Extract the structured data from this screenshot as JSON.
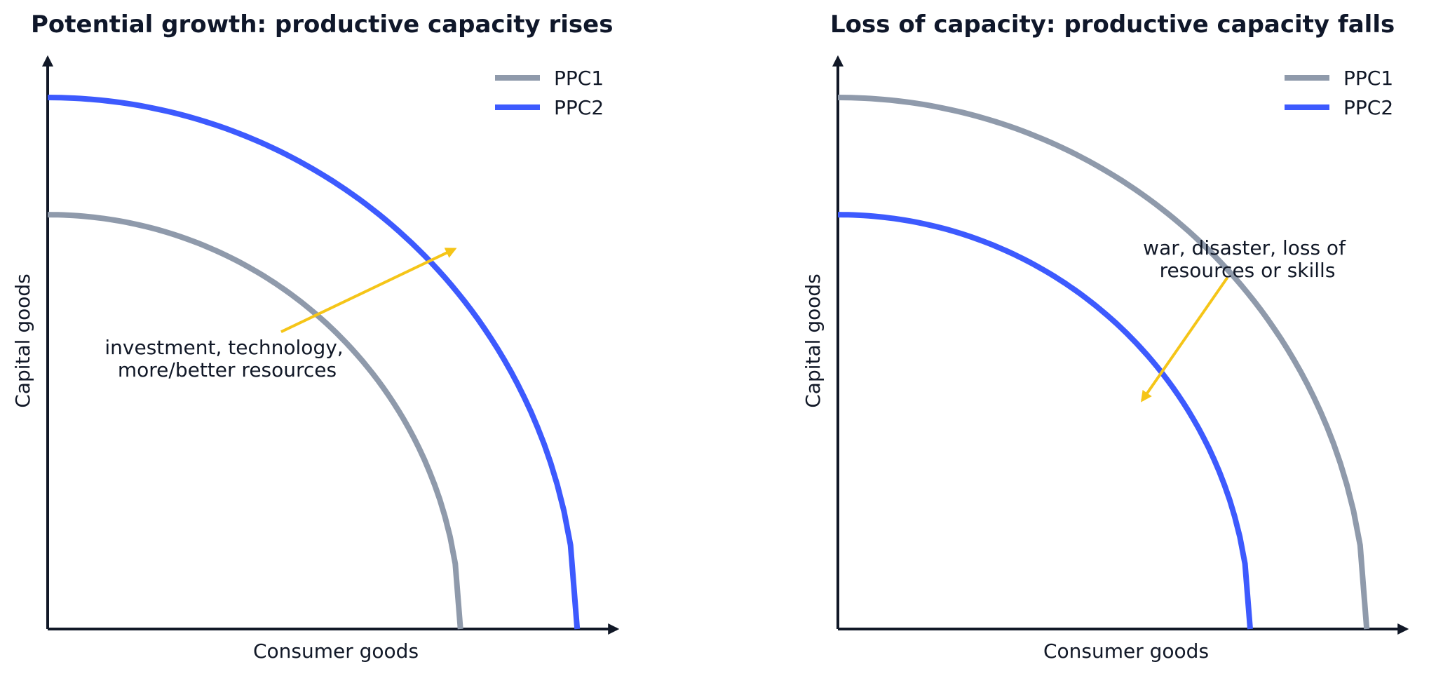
{
  "colors": {
    "ppc1": "#8f9aab",
    "ppc2": "#3d5afe",
    "arrow": "#f5c518",
    "axis": "#111827"
  },
  "chart_data": [
    {
      "type": "line",
      "title": "Potential growth: productive capacity rises",
      "xlabel": "Consumer goods",
      "ylabel": "Capital goods",
      "legend_position": "top-right",
      "grid": false,
      "xlim": [
        0,
        1
      ],
      "ylim": [
        0,
        1
      ],
      "series": [
        {
          "name": "PPC1",
          "color": "#8f9aab",
          "x_intercept": 0.725,
          "y_intercept": 0.725
        },
        {
          "name": "PPC2",
          "color": "#3d5afe",
          "x_intercept": 0.93,
          "y_intercept": 0.93
        }
      ],
      "annotation": {
        "lines": [
          "investment, technology,",
          "more/better resources"
        ],
        "arrow_from": [
          0.41,
          0.52
        ],
        "arrow_to": [
          0.715,
          0.665
        ]
      }
    },
    {
      "type": "line",
      "title": "Loss of capacity: productive capacity falls",
      "xlabel": "Consumer goods",
      "ylabel": "Capital goods",
      "legend_position": "top-right",
      "grid": false,
      "xlim": [
        0,
        1
      ],
      "ylim": [
        0,
        1
      ],
      "series": [
        {
          "name": "PPC1",
          "color": "#8f9aab",
          "x_intercept": 0.93,
          "y_intercept": 0.93
        },
        {
          "name": "PPC2",
          "color": "#3d5afe",
          "x_intercept": 0.725,
          "y_intercept": 0.725
        }
      ],
      "annotation": {
        "lines": [
          "war, disaster, loss of",
          "resources or skills"
        ],
        "arrow_from": [
          0.685,
          0.615
        ],
        "arrow_to": [
          0.535,
          0.4
        ]
      }
    }
  ]
}
